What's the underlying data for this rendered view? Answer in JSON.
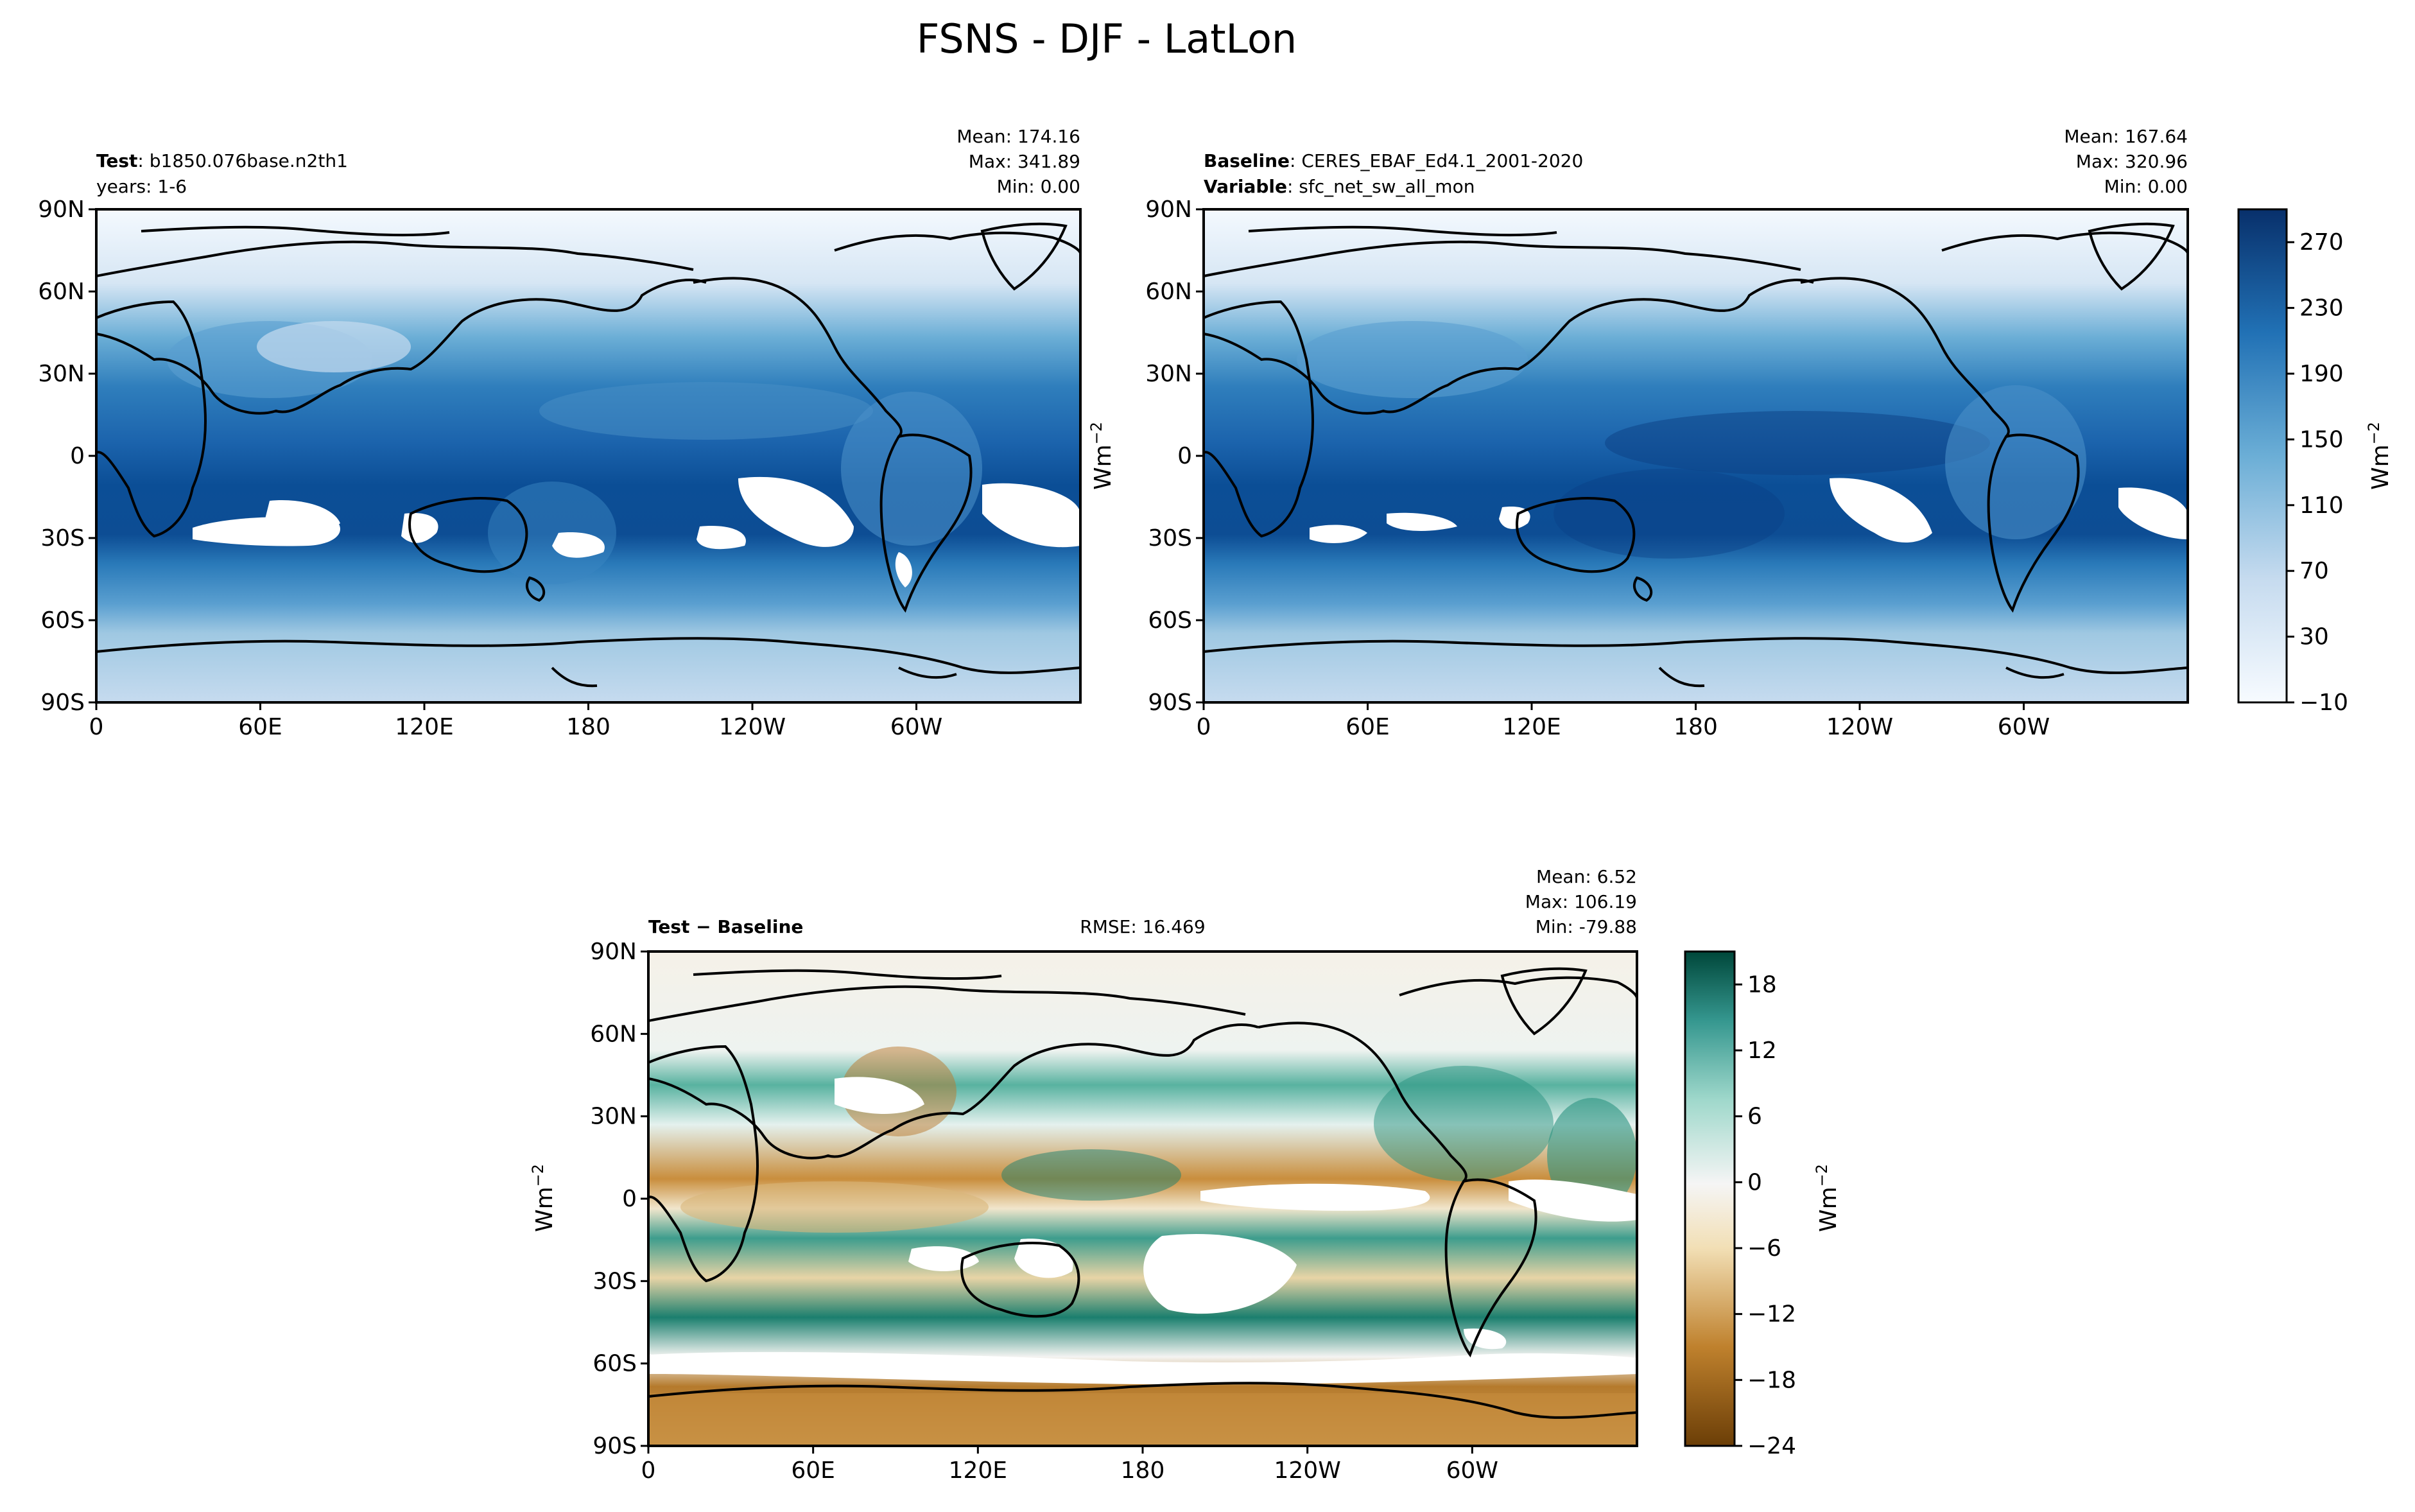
{
  "figure": {
    "title": "FSNS - DJF - LatLon"
  },
  "panels": {
    "test": {
      "label_bold": "Test",
      "label_rest": ": b1850.076base.n2th1",
      "line2": "years: 1-6",
      "stats": [
        "Mean: 174.16",
        "Max: 341.89",
        "Min:  0.00"
      ]
    },
    "baseline": {
      "label_bold": "Baseline",
      "label_rest": ": CERES_EBAF_Ed4.1_2001-2020",
      "label2_bold": "Variable",
      "label2_rest": ": sfc_net_sw_all_mon",
      "stats": [
        "Mean: 167.64",
        "Max: 320.96",
        "Min:  0.00"
      ]
    },
    "diff": {
      "label": "Test − Baseline",
      "rmse": "RMSE: 16.469",
      "stats": [
        "Mean:  6.52",
        "Max: 106.19",
        "Min: -79.88"
      ]
    }
  },
  "chart_data": [
    {
      "type": "heatmap",
      "panel": "test",
      "x_ticks": [
        "0",
        "60E",
        "120E",
        "180",
        "120W",
        "60W"
      ],
      "y_ticks": [
        "90N",
        "60N",
        "30N",
        "0",
        "30S",
        "60S",
        "90S"
      ],
      "xlim": [
        0,
        360
      ],
      "ylim": [
        -90,
        90
      ],
      "colormap": "Blues",
      "colorbar_ticks": [
        "270",
        "230",
        "190",
        "150",
        "110",
        "70",
        "30",
        "−10"
      ],
      "colorbar_range": [
        -10,
        290
      ],
      "colorbar_label": "Wm",
      "colorbar_label_exp": "−2",
      "stats": {
        "mean": 174.16,
        "max": 341.89,
        "min": 0.0
      }
    },
    {
      "type": "heatmap",
      "panel": "baseline",
      "x_ticks": [
        "0",
        "60E",
        "120E",
        "180",
        "120W",
        "60W"
      ],
      "y_ticks": [
        "90N",
        "60N",
        "30N",
        "0",
        "30S",
        "60S",
        "90S"
      ],
      "xlim": [
        0,
        360
      ],
      "ylim": [
        -90,
        90
      ],
      "colormap": "Blues",
      "stats": {
        "mean": 167.64,
        "max": 320.96,
        "min": 0.0
      }
    },
    {
      "type": "heatmap",
      "panel": "diff",
      "x_ticks": [
        "0",
        "60E",
        "120E",
        "180",
        "120W",
        "60W"
      ],
      "y_ticks": [
        "90N",
        "60N",
        "30N",
        "0",
        "30S",
        "60S",
        "90S"
      ],
      "xlim": [
        0,
        360
      ],
      "ylim": [
        -90,
        90
      ],
      "colormap": "BrBG",
      "colorbar_ticks": [
        "18",
        "12",
        "6",
        "0",
        "−6",
        "−12",
        "−18",
        "−24"
      ],
      "colorbar_range": [
        -24,
        21
      ],
      "colorbar_label": "Wm",
      "colorbar_label_exp": "−2",
      "ylabel": "Wm",
      "ylabel_exp": "−2",
      "stats": {
        "mean": 6.52,
        "max": 106.19,
        "min": -79.88,
        "rmse": 16.469
      }
    }
  ],
  "colors": {
    "blues_dark": "#08306b",
    "blues_light": "#f7fbff",
    "brbg_brown": "#6b3e07",
    "brbg_green": "#00473a",
    "axes": "#000000"
  }
}
